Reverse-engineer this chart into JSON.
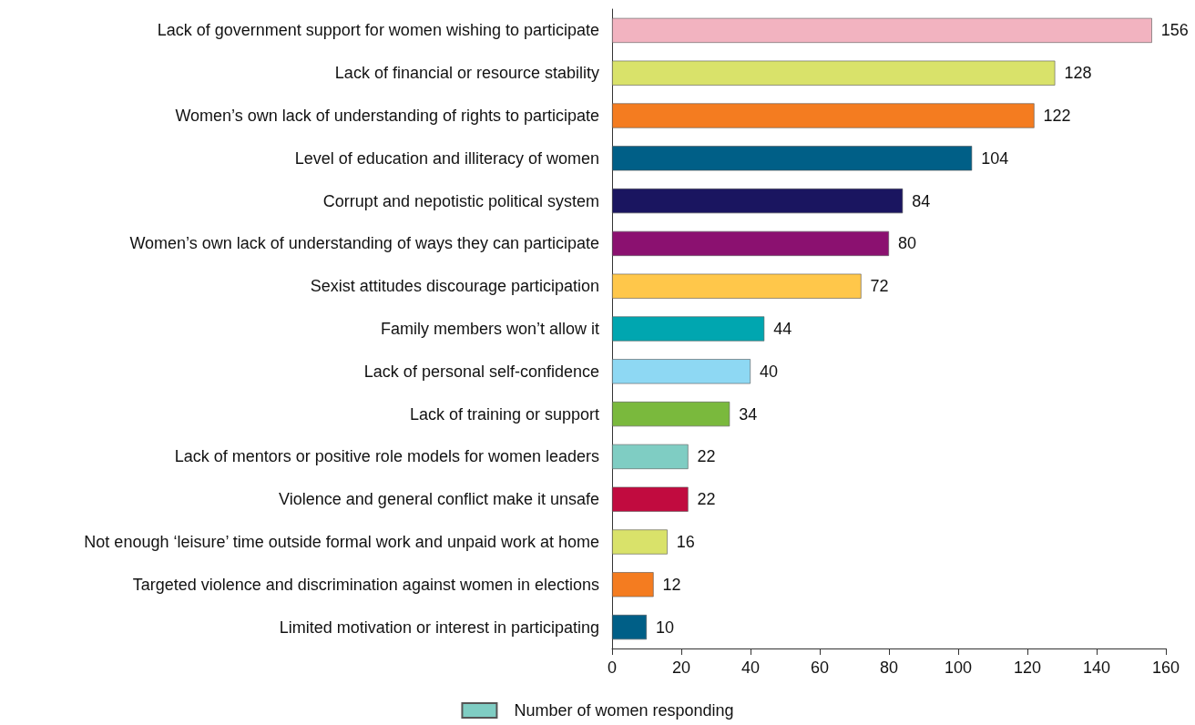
{
  "chart_data": {
    "type": "bar",
    "orientation": "horizontal",
    "categories": [
      "Lack of government support for women wishing to participate",
      "Lack of financial or resource stability",
      "Women’s own lack of understanding of rights to participate",
      "Level of education and illiteracy of women",
      "Corrupt and nepotistic political system",
      "Women’s own lack of understanding of ways they can participate",
      "Sexist attitudes discourage participation",
      "Family members won’t allow it",
      "Lack of personal self-confidence",
      "Lack of training or support",
      "Lack of mentors or positive role models for women leaders",
      "Violence and general conflict make it unsafe",
      "Not enough ‘leisure’ time outside formal work and unpaid work at home",
      "Targeted violence and discrimination against women in elections",
      "Limited motivation or interest in participating"
    ],
    "series": [
      {
        "name": "Number of women responding",
        "color": "#7fcdc3",
        "values": [
          156,
          128,
          122,
          104,
          84,
          80,
          72,
          44,
          40,
          34,
          22,
          22,
          16,
          12,
          10
        ],
        "colors": [
          "#f2b3c0",
          "#d9e26a",
          "#f47c20",
          "#005f87",
          "#1a1560",
          "#8b1170",
          "#ffc74a",
          "#00a6b0",
          "#8ed8f3",
          "#7ab93d",
          "#7fcdc3",
          "#c10b3f",
          "#d9e26a",
          "#f47c20",
          "#005f87"
        ]
      }
    ],
    "xlim": [
      0,
      160
    ],
    "xticks": [
      0,
      20,
      40,
      60,
      80,
      100,
      120,
      140,
      160
    ],
    "data_labels": true,
    "grid": false,
    "legend": "bottom"
  }
}
